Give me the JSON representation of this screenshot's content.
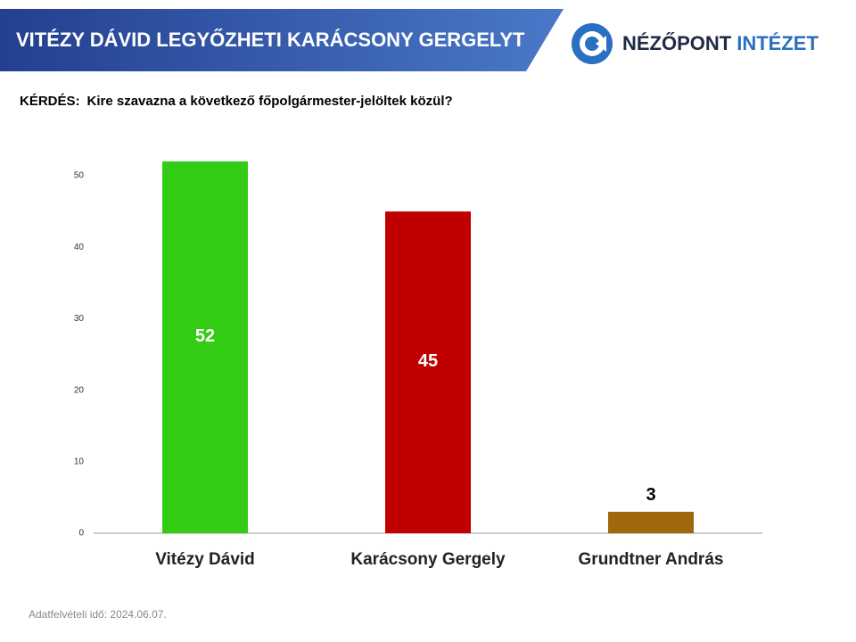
{
  "header": {
    "title": "VITÉZY DÁVID LEGYŐZHETI KARÁCSONY GERGELYT",
    "logo": [
      "NÉZŐPONT",
      "INTÉZET"
    ]
  },
  "question_label": "KÉRDÉS:",
  "question": "Kire szavazna a következő főpolgármester-jelöltek közül?",
  "footnote": "Adatfelvételi idő: 2024.06.07.",
  "chart_data": {
    "type": "bar",
    "categories": [
      "Vitézy Dávid",
      "Karácsony Gergely",
      "Grundtner András"
    ],
    "values": [
      52,
      45,
      3
    ],
    "colors": [
      "#33cc14",
      "#c00000",
      "#a0680a"
    ],
    "ylim": [
      0,
      55
    ],
    "yticks": [
      0,
      10,
      20,
      30,
      40,
      50
    ]
  }
}
